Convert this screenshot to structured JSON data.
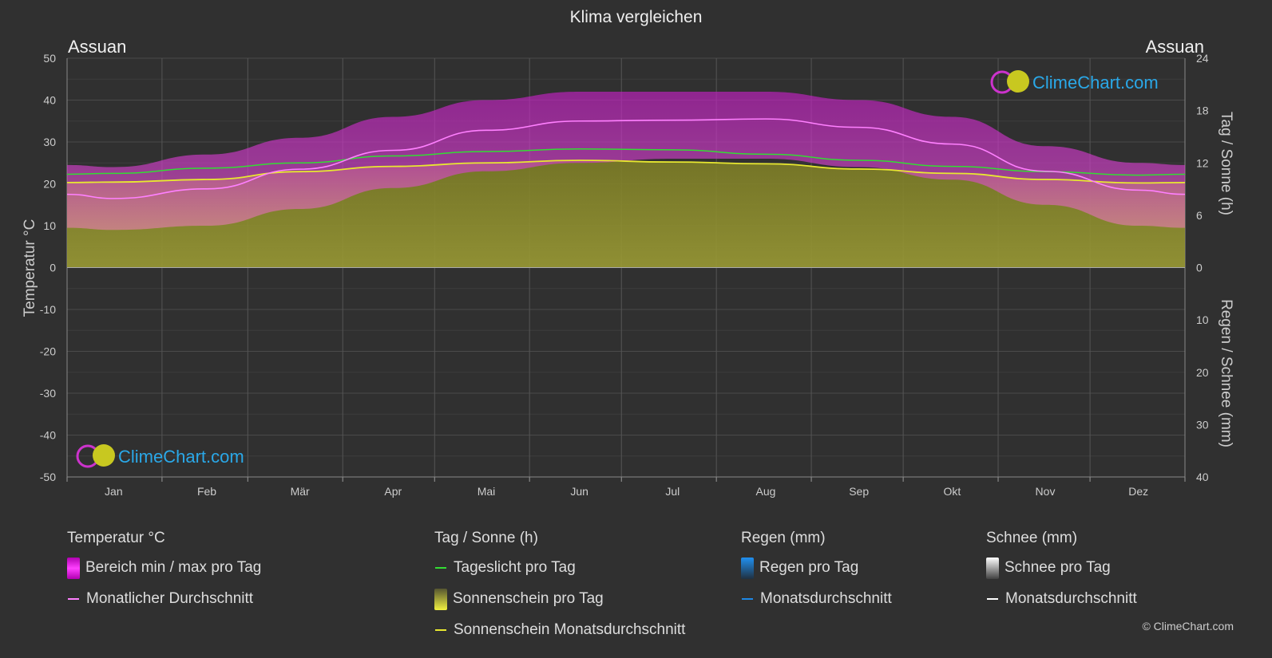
{
  "title": "Klima vergleichen",
  "location_left": "Assuan",
  "location_right": "Assuan",
  "logo_text": "ClimeChart.com",
  "copyright": "© ClimeChart.com",
  "colors": {
    "background": "#303030",
    "temp_range": "#d020d0",
    "temp_avg": "#ff80ff",
    "daylight": "#33dd33",
    "sunshine_fill": "#8c8c2a",
    "sunshine_avg": "#e8e830",
    "rain": "#1e88e5",
    "snow": "#ffffff"
  },
  "chart_data": {
    "type": "line",
    "months": [
      "Jan",
      "Feb",
      "Mär",
      "Apr",
      "Mai",
      "Jun",
      "Jul",
      "Aug",
      "Sep",
      "Okt",
      "Nov",
      "Dez"
    ],
    "left_axis": {
      "label": "Temperatur °C",
      "ticks": [
        "50",
        "40",
        "30",
        "20",
        "10",
        "0",
        "-10",
        "-20",
        "-30",
        "-40",
        "-50"
      ],
      "ylim": [
        -50,
        50
      ]
    },
    "right_axis_top": {
      "label": "Tag / Sonne (h)",
      "ticks": [
        "24",
        "18",
        "12",
        "6",
        "0"
      ],
      "ylim": [
        0,
        24
      ]
    },
    "right_axis_bottom": {
      "label": "Regen / Schnee (mm)",
      "ticks": [
        "0",
        "10",
        "20",
        "30",
        "40"
      ],
      "ylim": [
        0,
        40
      ]
    },
    "series": [
      {
        "name": "Monatlicher Durchschnitt",
        "unit": "°C",
        "values": [
          16.5,
          18.8,
          23.5,
          28.0,
          32.8,
          35.0,
          35.2,
          35.5,
          33.5,
          29.5,
          23.0,
          18.5
        ]
      },
      {
        "name": "Tageslicht pro Tag",
        "unit": "h",
        "values": [
          10.8,
          11.4,
          12.0,
          12.8,
          13.3,
          13.6,
          13.5,
          13.0,
          12.3,
          11.6,
          11.0,
          10.6
        ]
      },
      {
        "name": "Sonnenschein Monatsdurchschnitt",
        "unit": "h",
        "values": [
          9.8,
          10.1,
          11.0,
          11.6,
          12.0,
          12.3,
          12.1,
          11.9,
          11.3,
          10.8,
          10.1,
          9.7
        ]
      },
      {
        "name": "Bereich min / max pro Tag (max)",
        "unit": "°C",
        "values": [
          24,
          27,
          31,
          36,
          40,
          42,
          42,
          42,
          40,
          36,
          29,
          25
        ]
      },
      {
        "name": "Bereich min / max pro Tag (min)",
        "unit": "°C",
        "values": [
          9,
          10,
          14,
          19,
          23,
          25,
          26,
          26,
          24,
          21,
          15,
          10
        ]
      }
    ]
  },
  "legend": {
    "temp": {
      "head": "Temperatur °C",
      "items": [
        "Bereich min / max pro Tag",
        "Monatlicher Durchschnitt"
      ]
    },
    "sun": {
      "head": "Tag / Sonne (h)",
      "items": [
        "Tageslicht pro Tag",
        "Sonnenschein pro Tag",
        "Sonnenschein Monatsdurchschnitt"
      ]
    },
    "rain": {
      "head": "Regen (mm)",
      "items": [
        "Regen pro Tag",
        "Monatsdurchschnitt"
      ]
    },
    "snow": {
      "head": "Schnee (mm)",
      "items": [
        "Schnee pro Tag",
        "Monatsdurchschnitt"
      ]
    }
  }
}
